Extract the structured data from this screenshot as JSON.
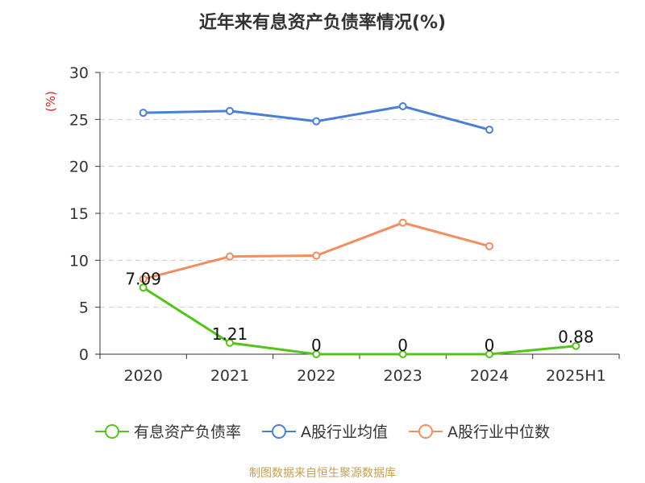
{
  "title": "近年来有息资产负债率情况(%)",
  "source": "制图数据来自恒生聚源数据库",
  "chart_data": {
    "type": "line",
    "title": "近年来有息资产负债率情况(%)",
    "ylabel": "(%)",
    "xlabel": "",
    "categories": [
      "2020",
      "2021",
      "2022",
      "2023",
      "2024",
      "2025H1"
    ],
    "ylim": [
      0,
      30
    ],
    "yticks": [
      0,
      5,
      10,
      15,
      20,
      25,
      30
    ],
    "grid": true,
    "legend_position": "bottom",
    "series": [
      {
        "name": "有息资产负债率",
        "color": "#52c41a",
        "values": [
          7.09,
          1.21,
          0,
          0,
          0,
          0.88
        ],
        "labels": [
          "7.09",
          "1.21",
          "0",
          "0",
          "0",
          "0.88"
        ]
      },
      {
        "name": "A股行业均值",
        "color": "#4a7fd8",
        "values": [
          25.7,
          25.9,
          24.8,
          26.4,
          23.9,
          null
        ]
      },
      {
        "name": "A股行业中位数",
        "color": "#f58c5e",
        "values": [
          8.0,
          10.4,
          10.5,
          14.0,
          11.5,
          null
        ]
      }
    ]
  }
}
